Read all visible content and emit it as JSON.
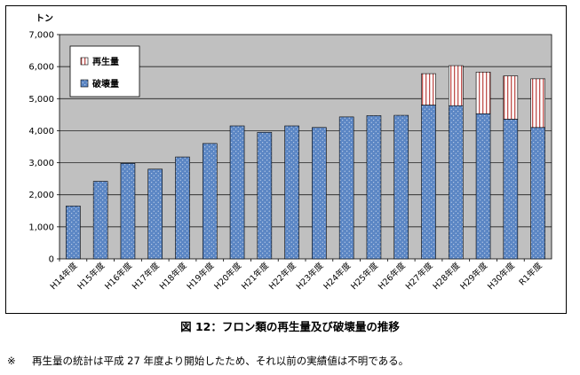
{
  "chart_data": {
    "type": "bar",
    "stacked": true,
    "ylabel": "トン",
    "ylim": [
      0,
      7000
    ],
    "yticks": [
      "7,000",
      "6,000",
      "5,000",
      "4,000",
      "3,000",
      "2,000",
      "1,000",
      "0"
    ],
    "ytick_values": [
      7000,
      6000,
      5000,
      4000,
      3000,
      2000,
      1000,
      0
    ],
    "grid": true,
    "legend_position": "top-left",
    "categories": [
      "H14年度",
      "H15年度",
      "H16年度",
      "H17年度",
      "H18年度",
      "H19年度",
      "H20年度",
      "H21年度",
      "H22年度",
      "H23年度",
      "H24年度",
      "H25年度",
      "H26年度",
      "H27年度",
      "H28年度",
      "H29年度",
      "H30年度",
      "R1年度"
    ],
    "series": [
      {
        "name": "破壊量",
        "color": "#5b86c4",
        "values": [
          1650,
          2420,
          2980,
          2800,
          3180,
          3600,
          4150,
          3950,
          4150,
          4100,
          4430,
          4470,
          4480,
          4800,
          4780,
          4530,
          4360,
          4100
        ]
      },
      {
        "name": "再生量",
        "color": "#c0504d",
        "values": [
          0,
          0,
          0,
          0,
          0,
          0,
          0,
          0,
          0,
          0,
          0,
          0,
          0,
          980,
          1250,
          1300,
          1350,
          1520
        ]
      }
    ]
  },
  "caption": "図 12：フロン類の再生量及び破壊量の推移",
  "note": {
    "mark": "※",
    "text": "再生量の統計は平成 27 年度より開始したため、それ以前の実績値は不明である。"
  }
}
